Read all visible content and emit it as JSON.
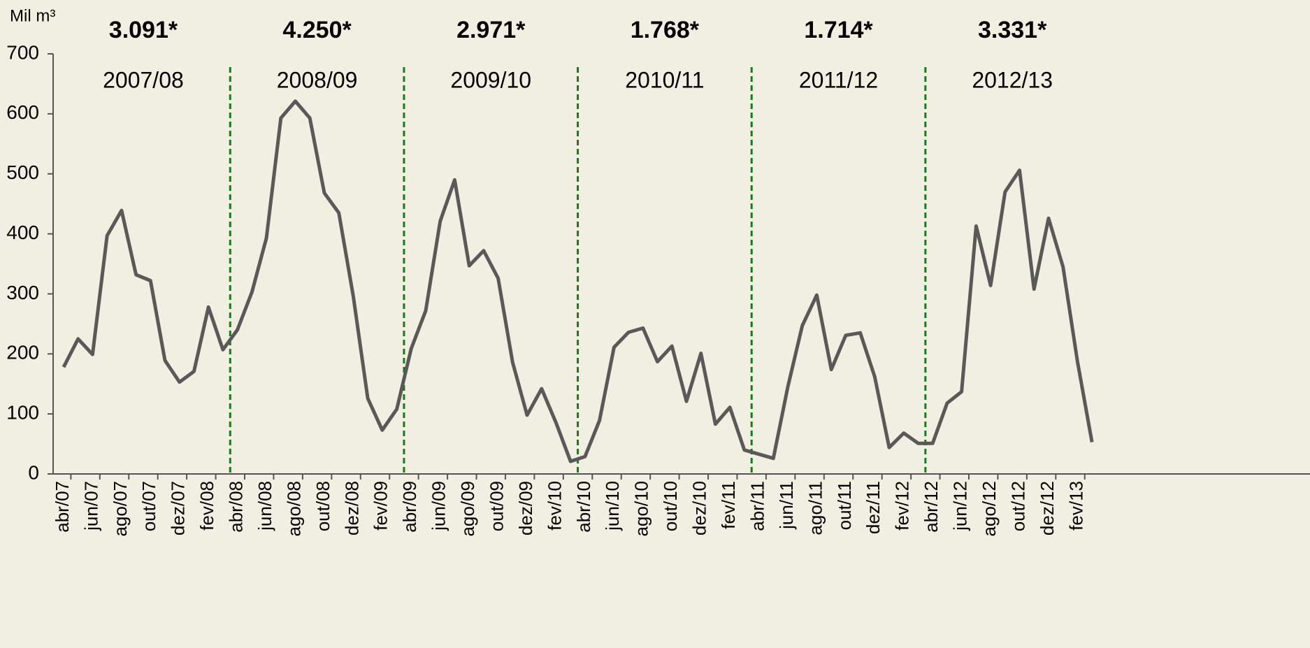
{
  "chart_data": {
    "type": "line",
    "y_unit": "Mil m³",
    "categories": [
      "abr/07",
      null,
      "jun/07",
      null,
      "ago/07",
      null,
      "out/07",
      null,
      "dez/07",
      null,
      "fev/08",
      null,
      "abr/08",
      null,
      "jun/08",
      null,
      "ago/08",
      null,
      "out/08",
      null,
      "dez/08",
      null,
      "fev/09",
      null,
      "abr/09",
      null,
      "jun/09",
      null,
      "ago/09",
      null,
      "out/09",
      null,
      "dez/09",
      null,
      "fev/10",
      null,
      "abr/10",
      null,
      "jun/10",
      null,
      "ago/10",
      null,
      "out/10",
      null,
      "dez/10",
      null,
      "fev/11",
      null,
      "abr/11",
      null,
      "jun/11",
      null,
      "ago/11",
      null,
      "out/11",
      null,
      "dez/11",
      null,
      "fev/12",
      null,
      "abr/12",
      null,
      "jun/12",
      null,
      "ago/12",
      null,
      "out/12",
      null,
      "dez/12",
      null,
      "fev/13",
      null
    ],
    "values": [
      178,
      225,
      199,
      397,
      439,
      332,
      322,
      189,
      153,
      171,
      278,
      207,
      240,
      303,
      393,
      593,
      621,
      593,
      468,
      435,
      296,
      126,
      73,
      108,
      209,
      272,
      421,
      490,
      347,
      372,
      326,
      186,
      98,
      142,
      85,
      21,
      29,
      89,
      211,
      236,
      243,
      187,
      213,
      121,
      201,
      83,
      111,
      40,
      33,
      26,
      145,
      247,
      298,
      174,
      231,
      235,
      162,
      44,
      68,
      51,
      51,
      118,
      137,
      413,
      314,
      470,
      506,
      308,
      426,
      345,
      187,
      53
    ],
    "color": "#595959",
    "ylim": [
      0,
      700
    ],
    "yticks": [
      0,
      100,
      200,
      300,
      400,
      500,
      600,
      700
    ],
    "periods": [
      {
        "label": "2007/08",
        "total": "3.091*"
      },
      {
        "label": "2008/09",
        "total": "4.250*"
      },
      {
        "label": "2009/10",
        "total": "2.971*"
      },
      {
        "label": "2010/11",
        "total": "1.768*"
      },
      {
        "label": "2011/12",
        "total": "1.714*"
      },
      {
        "label": "2012/13",
        "total": "3.331*"
      }
    ]
  }
}
